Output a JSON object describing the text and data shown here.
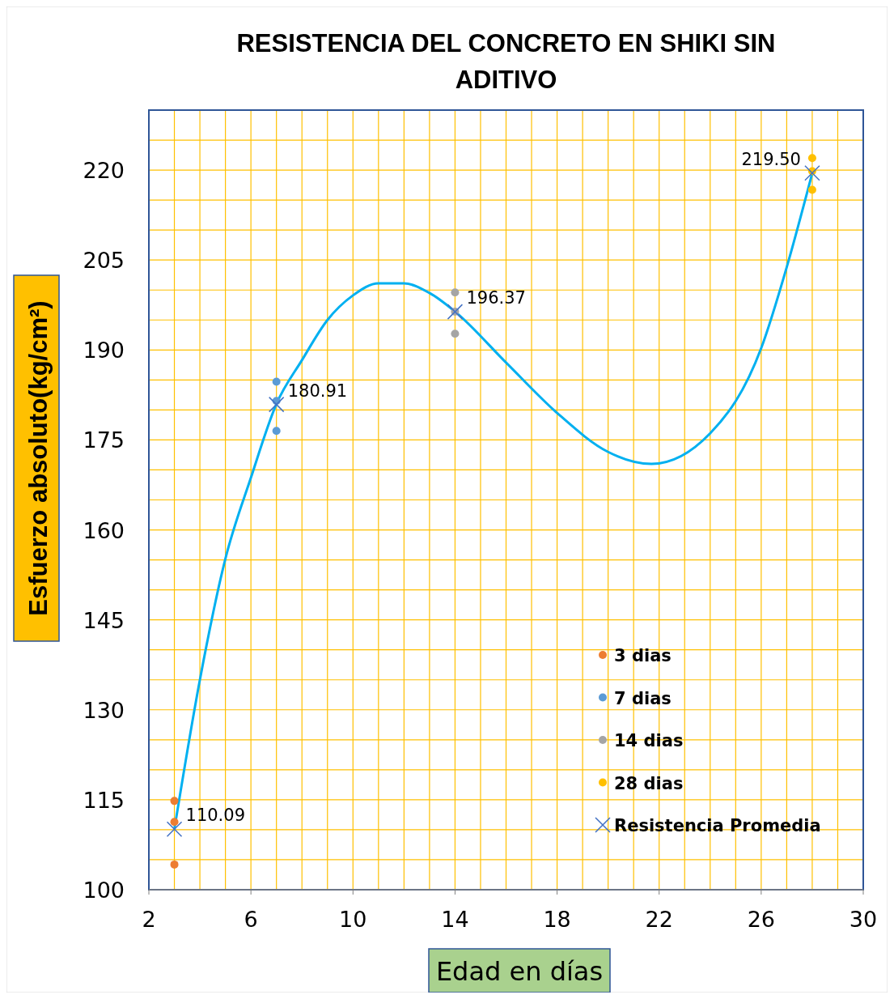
{
  "chart_data": {
    "type": "scatter",
    "title": "RESISTENCIA DEL CONCRETO EN SHIKI SIN ADITIVO",
    "xlabel": "Edad en días",
    "ylabel": "Esfuerzo absoluto(kg/cm²)",
    "xlim": [
      2,
      30
    ],
    "ylim": [
      100,
      230
    ],
    "xticks": [
      2,
      {
        "value": 3,
        "label": null
      },
      {
        "value": 4,
        "label": null
      },
      {
        "value": 5,
        "label": null
      },
      6,
      {
        "value": 7,
        "label": null
      },
      {
        "value": 8,
        "label": null
      },
      {
        "value": 9,
        "label": null
      },
      10,
      {
        "value": 11,
        "label": null
      },
      {
        "value": 12,
        "label": null
      },
      {
        "value": 13,
        "label": null
      },
      14,
      {
        "value": 15,
        "label": null
      },
      {
        "value": 16,
        "label": null
      },
      {
        "value": 17,
        "label": null
      },
      18,
      {
        "value": 19,
        "label": null
      },
      {
        "value": 20,
        "label": null
      },
      {
        "value": 21,
        "label": null
      },
      22,
      {
        "value": 23,
        "label": null
      },
      {
        "value": 24,
        "label": null
      },
      {
        "value": 25,
        "label": null
      },
      26,
      {
        "value": 27,
        "label": null
      },
      {
        "value": 28,
        "label": null
      },
      {
        "value": 29,
        "label": null
      },
      30
    ],
    "yticks": [
      100,
      {
        "value": 105,
        "label": null
      },
      {
        "value": 110,
        "label": null
      },
      115,
      {
        "value": 120,
        "label": null
      },
      {
        "value": 125,
        "label": null
      },
      130,
      {
        "value": 135,
        "label": null
      },
      {
        "value": 140,
        "label": null
      },
      145,
      {
        "value": 150,
        "label": null
      },
      {
        "value": 155,
        "label": null
      },
      160,
      {
        "value": 165,
        "label": null
      },
      {
        "value": 170,
        "label": null
      },
      175,
      {
        "value": 180,
        "label": null
      },
      {
        "value": 185,
        "label": null
      },
      190,
      {
        "value": 195,
        "label": null
      },
      {
        "value": 200,
        "label": null
      },
      205,
      {
        "value": 210,
        "label": null
      },
      {
        "value": 215,
        "label": null
      },
      220,
      {
        "value": 225,
        "label": null
      },
      {
        "value": 230,
        "label": null
      }
    ],
    "grid": true,
    "legend": "bottom right",
    "series": [
      {
        "type": "line",
        "color": "#00b0f0",
        "marker": "none",
        "line_style": "solid",
        "x": [
          3,
          4,
          5,
          6,
          7,
          8,
          9,
          10,
          11,
          12,
          13,
          14,
          16,
          18,
          20,
          21.7,
          24,
          26,
          27,
          28
        ],
        "values": [
          110.1,
          135,
          155.2,
          168.7,
          181,
          188.3,
          195,
          199.1,
          201.1,
          201.1,
          199.5,
          196.4,
          187.9,
          179.5,
          173,
          171,
          176.1,
          190.3,
          203.8,
          219.5
        ]
      },
      {
        "name": "3 dias",
        "color": "#ed7d31",
        "marker": "circle",
        "x": [
          3,
          3,
          3
        ],
        "values": [
          114.8,
          111.3,
          104.2
        ]
      },
      {
        "name": "7 dias",
        "color": "#5b9bd5",
        "marker": "circle",
        "x": [
          7,
          7,
          7
        ],
        "values": [
          184.7,
          181.5,
          176.5
        ]
      },
      {
        "name": "14 dias",
        "color": "#a5a5a5",
        "marker": "circle",
        "x": [
          14,
          14,
          14
        ],
        "values": [
          199.6,
          196.4,
          192.7
        ]
      },
      {
        "name": "28 dias",
        "color": "#ffc000",
        "marker": "circle",
        "x": [
          28,
          28,
          28
        ],
        "values": [
          222,
          219.8,
          216.7
        ]
      },
      {
        "name": "Resistencia Promedia",
        "color": "#4472c4",
        "marker": "cross",
        "x": [
          3,
          7,
          14,
          28
        ],
        "values": [
          110.09,
          180.91,
          196.37,
          219.5
        ],
        "value_labels": [
          "110.09",
          "180.91",
          "196.37",
          "219.50"
        ]
      }
    ]
  }
}
